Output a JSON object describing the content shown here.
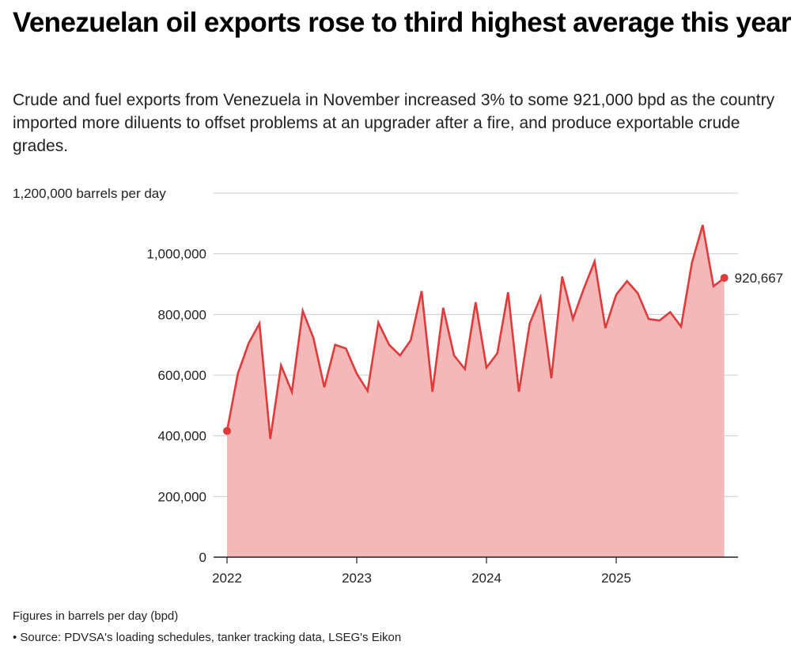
{
  "title": "Venezuelan oil exports rose to third highest average this year",
  "subtitle": "Crude and fuel exports from Venezuela in November increased 3% to some 921,000 bpd as the country imported more diluents to offset problems at an upgrader after a fire, and produce exportable crude grades.",
  "footnote": "Figures in barrels per day (bpd)",
  "source": "• Source: PDVSA's loading schedules, tanker tracking data, LSEG's Eikon",
  "colors": {
    "line": "#e03a3a",
    "area": "#f4b8b8",
    "grid": "#cccccc",
    "axis": "#222222"
  },
  "chart_data": {
    "type": "area",
    "title": "Venezuelan oil exports rose to third highest average this year",
    "ylabel": "barrels per day",
    "xlabel": "",
    "y_unit_label": "1,200,000 barrels per day",
    "ylim": [
      0,
      1200000
    ],
    "yticks": [
      0,
      200000,
      400000,
      600000,
      800000,
      1000000,
      1200000
    ],
    "ytick_labels": [
      "0",
      "200,000",
      "400,000",
      "600,000",
      "800,000",
      "1,000,000",
      "1,200,000 barrels per day"
    ],
    "xticks": [
      "2022",
      "2023",
      "2024",
      "2025"
    ],
    "grid": true,
    "end_label": "920,667",
    "series": [
      {
        "name": "Crude and fuel exports",
        "x": [
          "2022-01",
          "2022-02",
          "2022-03",
          "2022-04",
          "2022-05",
          "2022-06",
          "2022-07",
          "2022-08",
          "2022-09",
          "2022-10",
          "2022-11",
          "2022-12",
          "2023-01",
          "2023-02",
          "2023-03",
          "2023-04",
          "2023-05",
          "2023-06",
          "2023-07",
          "2023-08",
          "2023-09",
          "2023-10",
          "2023-11",
          "2023-12",
          "2024-01",
          "2024-02",
          "2024-03",
          "2024-04",
          "2024-05",
          "2024-06",
          "2024-07",
          "2024-08",
          "2024-09",
          "2024-10",
          "2024-11",
          "2024-12",
          "2025-01",
          "2025-02",
          "2025-03",
          "2025-04",
          "2025-05",
          "2025-06",
          "2025-07",
          "2025-08",
          "2025-09",
          "2025-10",
          "2025-11"
        ],
        "values": [
          416000,
          605000,
          705000,
          770000,
          390000,
          632000,
          545000,
          812000,
          722000,
          560000,
          700000,
          688000,
          605000,
          548000,
          773000,
          700000,
          665000,
          715000,
          877000,
          545000,
          822000,
          665000,
          620000,
          840000,
          625000,
          672000,
          873000,
          545000,
          770000,
          857000,
          590000,
          925000,
          785000,
          885000,
          975000,
          755000,
          865000,
          910000,
          870000,
          785000,
          780000,
          808000,
          760000,
          970000,
          1095000,
          893000,
          920667
        ]
      }
    ]
  }
}
